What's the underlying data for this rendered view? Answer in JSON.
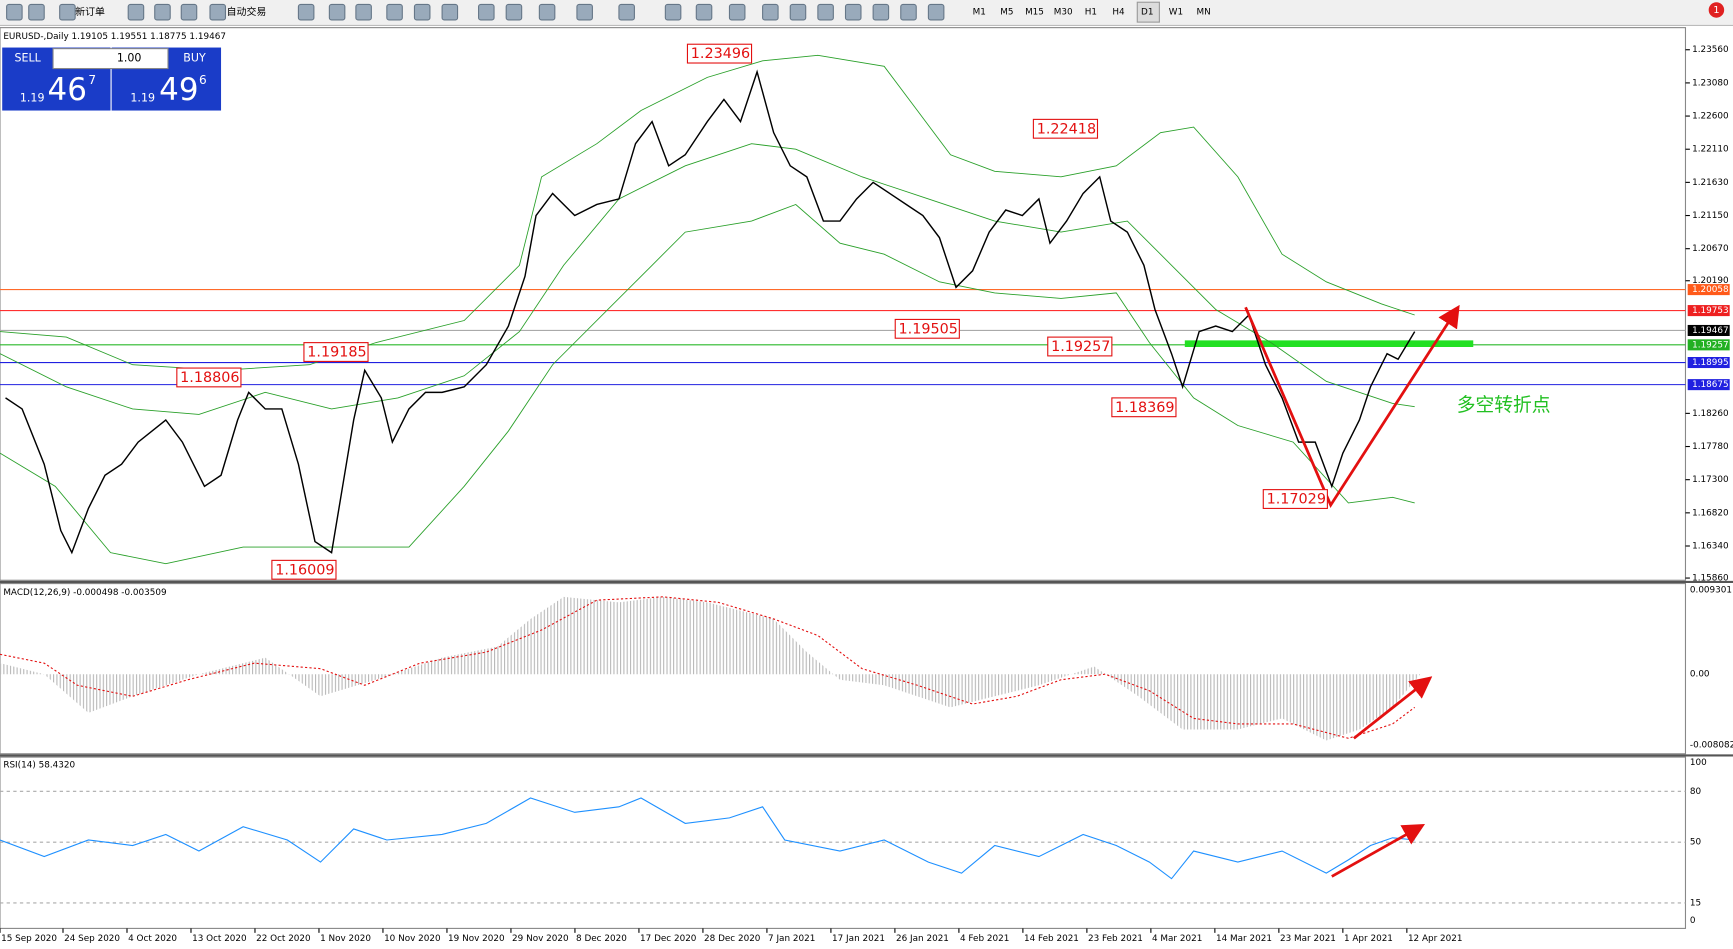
{
  "toolbar": {
    "new_order": "新订单",
    "auto_trading": "自动交易",
    "timeframes": [
      "M1",
      "M5",
      "M15",
      "M30",
      "H1",
      "H4",
      "D1",
      "W1",
      "MN"
    ],
    "notification_count": "1"
  },
  "symbol_header": "EURUSD-,Daily  1.19105 1.19551 1.18775 1.19467",
  "trade_panel": {
    "sell": "SELL",
    "buy": "BUY",
    "lot": "1.00",
    "bid": {
      "big": "1.19",
      "pips": "46",
      "fraction": "7"
    },
    "ask": {
      "big": "1.19",
      "pips": "49",
      "fraction": "6"
    }
  },
  "price_axis": {
    "ticks": [
      "1.23560",
      "1.23080",
      "1.22600",
      "1.22110",
      "1.21630",
      "1.21150",
      "1.20670",
      "1.20190",
      "1.18260",
      "1.17780",
      "1.17300",
      "1.16820",
      "1.16340",
      "1.15860"
    ],
    "markers": [
      "1.20058",
      "1.19753",
      "1.19467",
      "1.19257",
      "1.18995",
      "1.18675"
    ]
  },
  "annotations": {
    "price_labels": [
      "1.23496",
      "1.22418",
      "1.19505",
      "1.19257",
      "1.19185",
      "1.18806",
      "1.18369",
      "1.17029",
      "1.16009"
    ],
    "note": "多空转折点"
  },
  "macd": {
    "label": "MACD(12,26,9) -0.000498 -0.003509",
    "ticks": [
      "0.009301",
      "0.00",
      "-0.008082"
    ]
  },
  "rsi": {
    "label": "RSI(14) 58.4320",
    "ticks": [
      "100",
      "80",
      "50",
      "15",
      "0"
    ]
  },
  "time_axis": [
    "15 Sep 2020",
    "24 Sep 2020",
    "4 Oct 2020",
    "13 Oct 2020",
    "22 Oct 2020",
    "1 Nov 2020",
    "10 Nov 2020",
    "19 Nov 2020",
    "29 Nov 2020",
    "8 Dec 2020",
    "17 Dec 2020",
    "28 Dec 2020",
    "7 Jan 2021",
    "17 Jan 2021",
    "26 Jan 2021",
    "4 Feb 2021",
    "14 Feb 2021",
    "23 Feb 2021",
    "4 Mar 2021",
    "14 Mar 2021",
    "23 Mar 2021",
    "1 Apr 2021",
    "12 Apr 2021"
  ]
}
